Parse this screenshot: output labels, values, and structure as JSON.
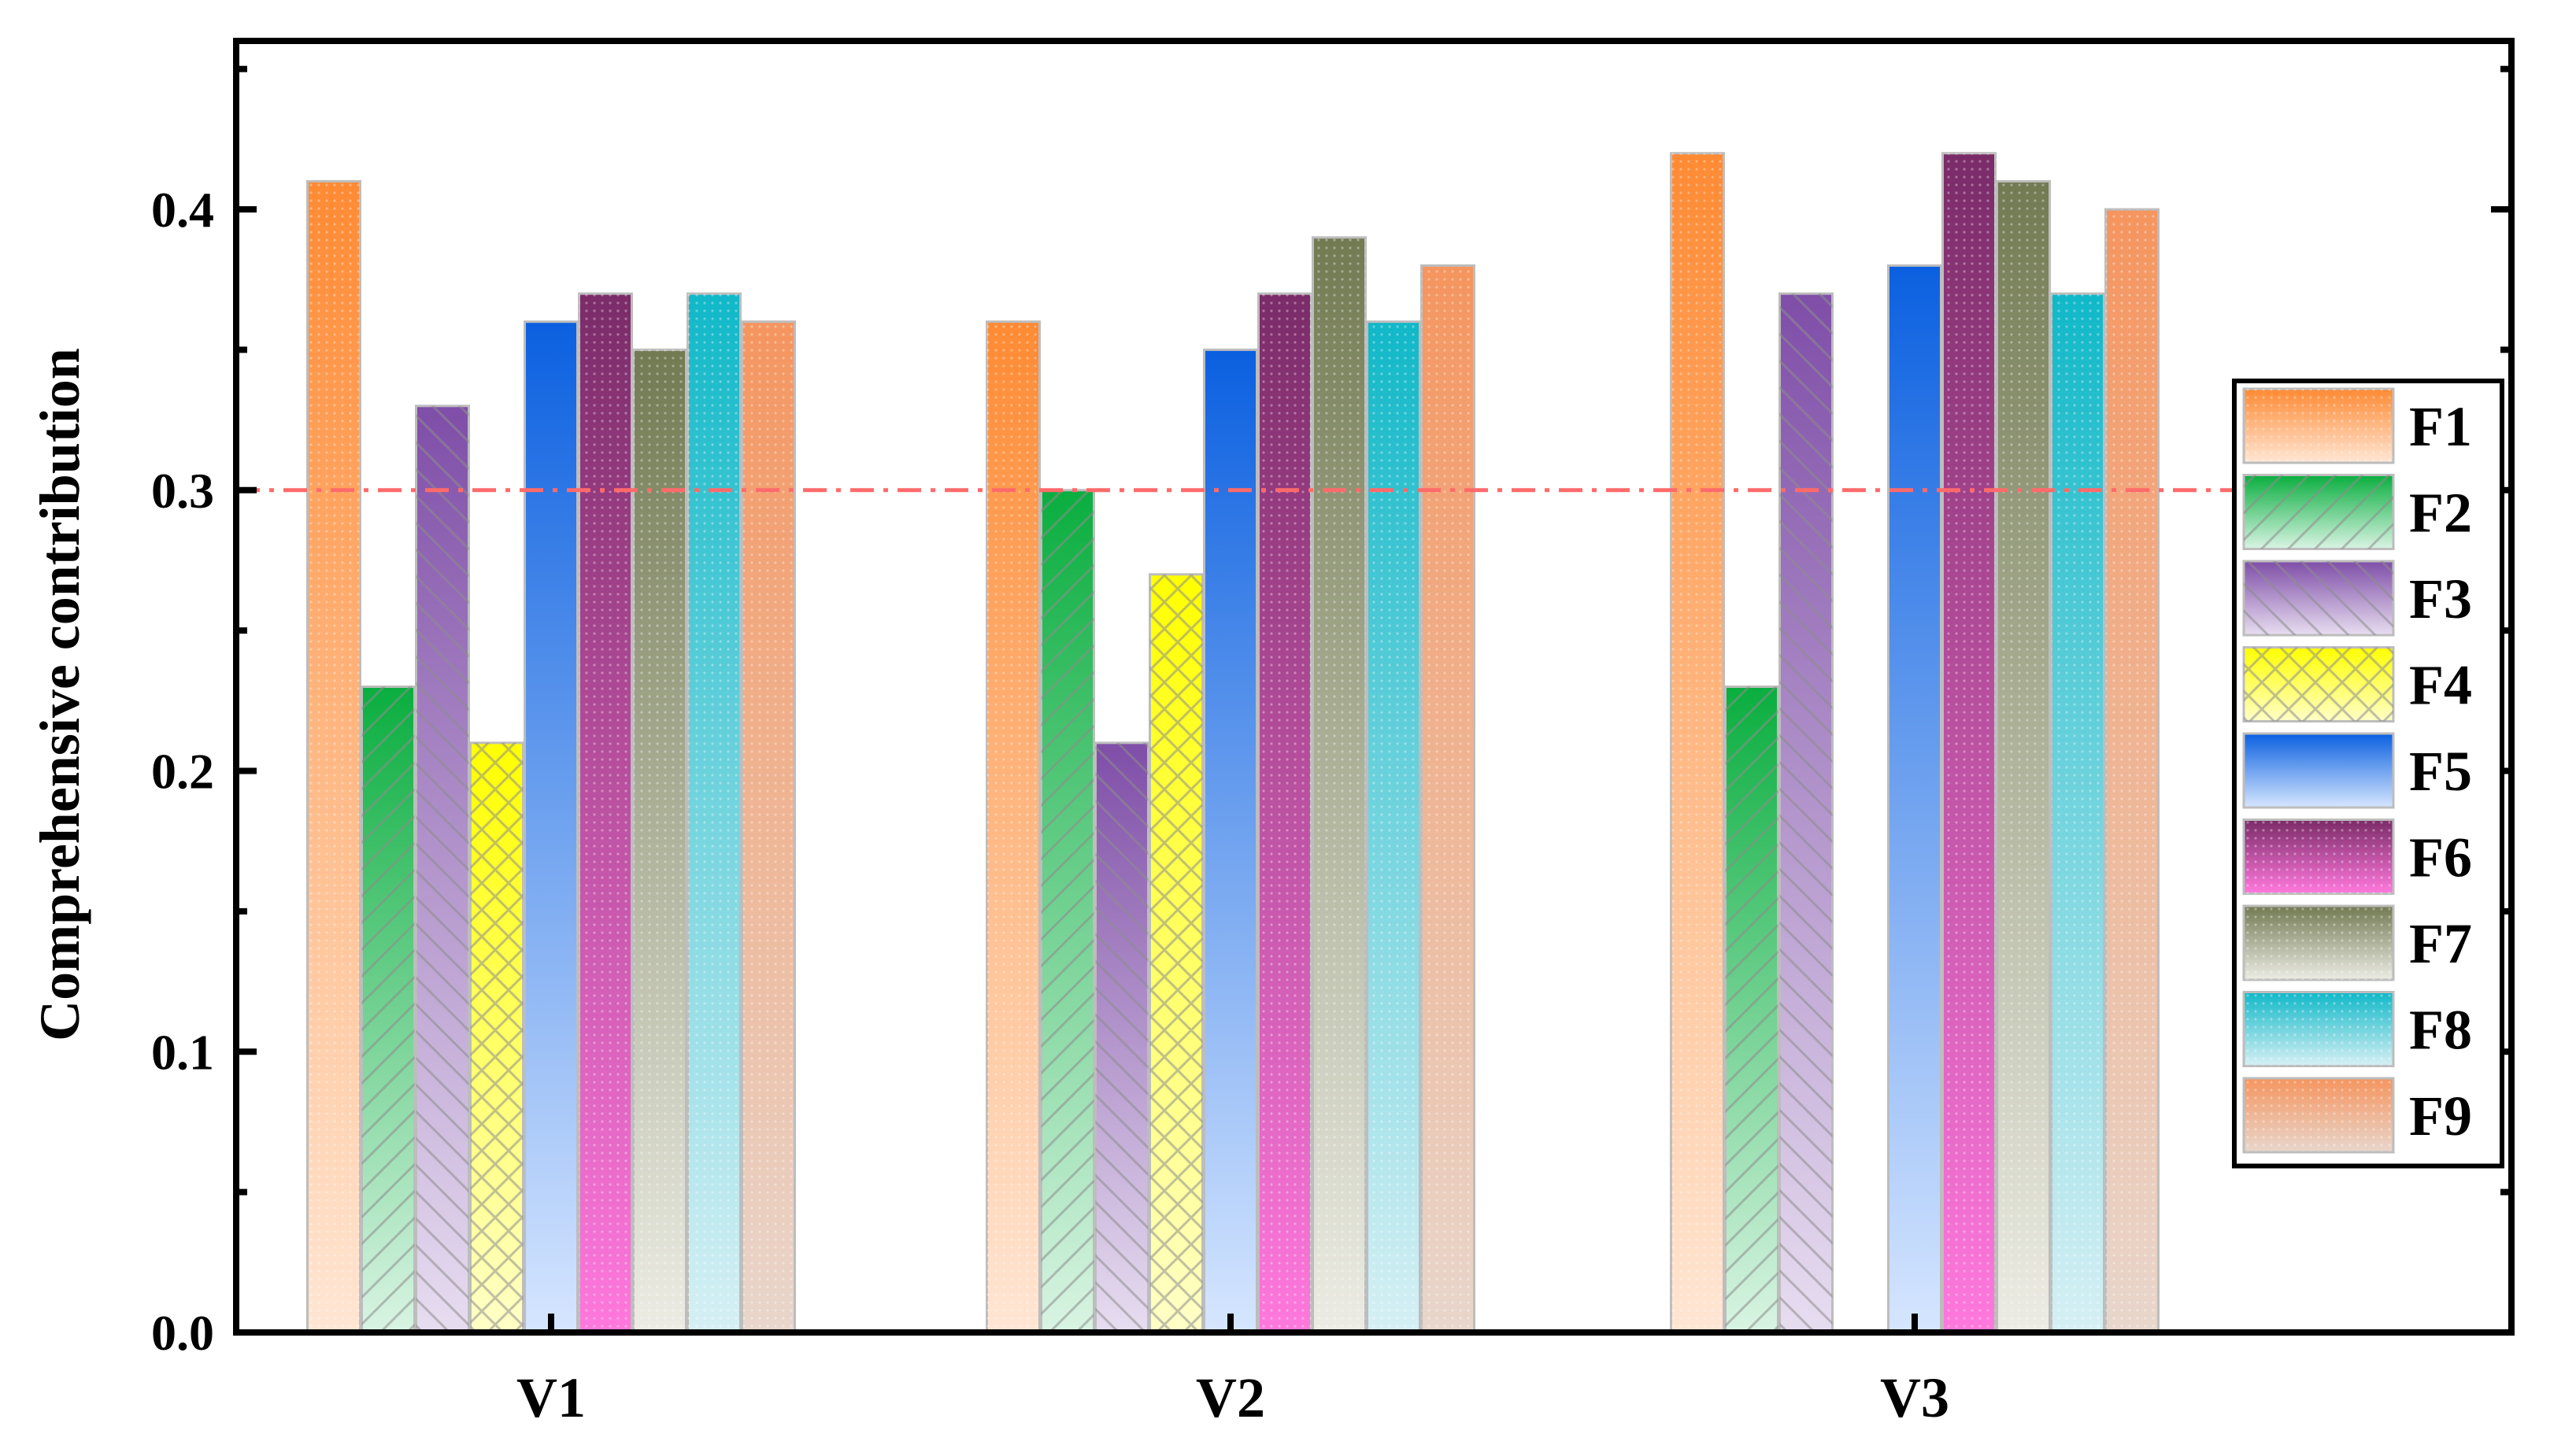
{
  "chart_data": {
    "type": "bar",
    "title": "",
    "xlabel": "",
    "ylabel": "Comprehensive contribution",
    "ylim": [
      0,
      0.46
    ],
    "yticks": [
      "0.0",
      "0.1",
      "0.2",
      "0.3",
      "0.4"
    ],
    "categories": [
      "V1",
      "V2",
      "V3"
    ],
    "reference_line": {
      "value": 0.3,
      "style": "dash-dot",
      "color": "#ff6a6a"
    },
    "legend_position": "right",
    "series": [
      {
        "name": "F1",
        "values": [
          0.41,
          0.36,
          0.42
        ],
        "color": "#ff8a33",
        "light": "#ffe6d4",
        "pattern": "dots"
      },
      {
        "name": "F2",
        "values": [
          0.23,
          0.3,
          0.23
        ],
        "color": "#0aae3f",
        "light": "#d9f4e3",
        "pattern": "diag-fwd"
      },
      {
        "name": "F3",
        "values": [
          0.33,
          0.21,
          0.37
        ],
        "color": "#7f4ea8",
        "light": "#e7ddf0",
        "pattern": "diag-back"
      },
      {
        "name": "F4",
        "values": [
          0.21,
          0.27,
          0.0
        ],
        "color": "#ffff00",
        "light": "#ffffc8",
        "pattern": "cross"
      },
      {
        "name": "F5",
        "values": [
          0.36,
          0.35,
          0.38
        ],
        "color": "#0b60e0",
        "light": "#d6e6ff",
        "pattern": "none"
      },
      {
        "name": "F6",
        "values": [
          0.37,
          0.37,
          0.42
        ],
        "color": "#7a2b68",
        "light": "#ff78dd",
        "pattern": "dots"
      },
      {
        "name": "F7",
        "values": [
          0.35,
          0.39,
          0.41
        ],
        "color": "#727a52",
        "light": "#ecece4",
        "pattern": "dots"
      },
      {
        "name": "F8",
        "values": [
          0.37,
          0.36,
          0.37
        ],
        "color": "#10b8c8",
        "light": "#d6f0f4",
        "pattern": "dots"
      },
      {
        "name": "F9",
        "values": [
          0.36,
          0.38,
          0.4
        ],
        "color": "#f5955f",
        "light": "#e8d6cc",
        "pattern": "dots"
      }
    ]
  }
}
